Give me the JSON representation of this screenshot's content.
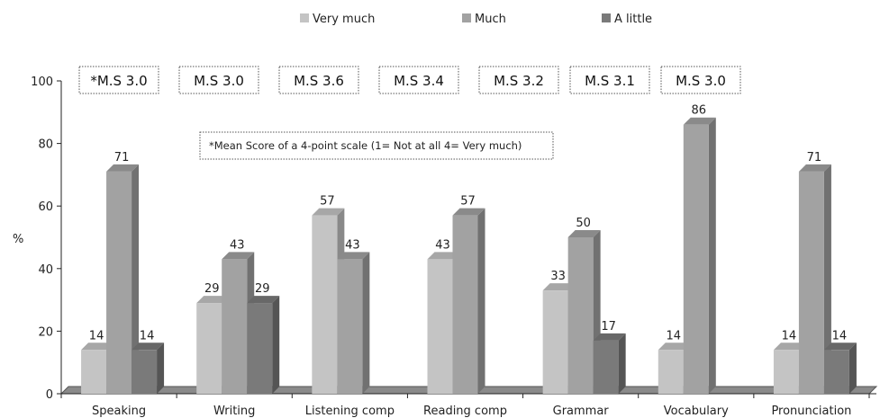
{
  "chart_data": {
    "type": "bar",
    "categories": [
      "Speaking",
      "Writing",
      "Listening comp",
      "Reading comp",
      "Grammar",
      "Vocabulary",
      "Pronunciation"
    ],
    "series": [
      {
        "name": "Very much",
        "values": [
          14,
          29,
          57,
          43,
          33,
          14,
          14
        ],
        "color": "#c4c4c4"
      },
      {
        "name": "Much",
        "values": [
          71,
          43,
          43,
          57,
          50,
          86,
          71
        ],
        "color": "#a2a2a2"
      },
      {
        "name": "A little",
        "values": [
          14,
          29,
          0,
          0,
          17,
          0,
          14
        ],
        "color": "#7a7a7a"
      }
    ],
    "data_labels": [
      [
        "14",
        "29",
        "57",
        "43",
        "33",
        "14",
        "14"
      ],
      [
        "71",
        "43",
        "43",
        "57",
        "50",
        "86",
        "71"
      ],
      [
        "14",
        "29",
        "",
        "",
        "17",
        "",
        "14"
      ]
    ],
    "ylabel": "%",
    "ylim": [
      0,
      100
    ],
    "yticks": [
      0,
      20,
      40,
      60,
      80,
      100
    ],
    "grid": false,
    "legend_position": "top",
    "mean_scores": [
      "*M.S 3.0",
      "M.S 3.0",
      "M.S 3.6",
      "M.S 3.4",
      "M.S 3.2",
      "M.S 3.1",
      "M.S 3.0"
    ],
    "annotation": "*Mean Score of a 4-point scale (1= Not at all 4= Very much)"
  }
}
